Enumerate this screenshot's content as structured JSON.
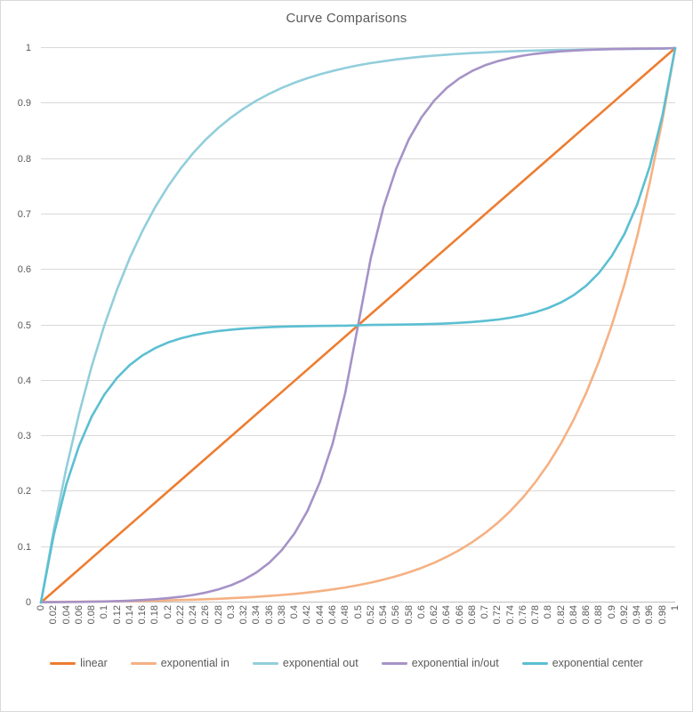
{
  "chart_data": {
    "type": "line",
    "title": "Curve Comparisons",
    "xlabel": "",
    "ylabel": "",
    "xlim": [
      0,
      1
    ],
    "ylim": [
      0,
      1
    ],
    "x_tick_step": 0.02,
    "y_tick_step": 0.1,
    "grid": "horizontal-major",
    "legend_position": "bottom",
    "colors": {
      "background": "#FFFFFF",
      "frame_border": "#D9D9D9",
      "gridline": "#D9D9D9",
      "axis_line": "#BFBFBF",
      "tick_text": "#595959",
      "title_text": "#595959",
      "legend_text": "#595959"
    },
    "x": [
      0,
      0.02,
      0.04,
      0.06,
      0.08,
      0.1,
      0.12,
      0.14,
      0.16,
      0.18,
      0.2,
      0.22,
      0.24,
      0.26,
      0.28,
      0.3,
      0.32,
      0.34,
      0.36,
      0.38,
      0.4,
      0.42,
      0.44,
      0.46,
      0.48,
      0.5,
      0.52,
      0.54,
      0.56,
      0.58,
      0.6,
      0.62,
      0.64,
      0.66,
      0.68,
      0.7,
      0.72,
      0.74,
      0.76,
      0.78,
      0.8,
      0.82,
      0.84,
      0.86,
      0.88,
      0.9,
      0.92,
      0.94,
      0.96,
      0.98,
      1
    ],
    "x_labels": [
      "0",
      "0.02",
      "0.04",
      "0.06",
      "0.08",
      "0.1",
      "0.12",
      "0.14",
      "0.16",
      "0.18",
      "0.2",
      "0.22",
      "0.24",
      "0.26",
      "0.28",
      "0.3",
      "0.32",
      "0.34",
      "0.36",
      "0.38",
      "0.4",
      "0.42",
      "0.44",
      "0.46",
      "0.48",
      "0.5",
      "0.52",
      "0.54",
      "0.56",
      "0.58",
      "0.6",
      "0.62",
      "0.64",
      "0.66",
      "0.68",
      "0.7",
      "0.72",
      "0.74",
      "0.76",
      "0.78",
      "0.8",
      "0.82",
      "0.84",
      "0.86",
      "0.88",
      "0.9",
      "0.92",
      "0.94",
      "0.96",
      "0.98",
      "1"
    ],
    "y_labels": [
      "1",
      "0.9",
      "0.8",
      "0.7",
      "0.6",
      "0.5",
      "0.4",
      "0.3",
      "0.2",
      "0.1",
      "0"
    ],
    "series": [
      {
        "name": "linear",
        "color": "#ED7D31",
        "values": [
          0,
          0.02,
          0.04,
          0.06,
          0.08,
          0.1,
          0.12,
          0.14,
          0.16,
          0.18,
          0.2,
          0.22,
          0.24,
          0.26,
          0.28,
          0.3,
          0.32,
          0.34,
          0.36,
          0.38,
          0.4,
          0.42,
          0.44,
          0.46,
          0.48,
          0.5,
          0.52,
          0.54,
          0.56,
          0.58,
          0.6,
          0.62,
          0.64,
          0.66,
          0.68,
          0.7,
          0.72,
          0.74,
          0.76,
          0.78,
          0.8,
          0.82,
          0.84,
          0.86,
          0.88,
          0.9,
          0.92,
          0.94,
          0.96,
          0.98,
          1
        ]
      },
      {
        "name": "exponential in",
        "color": "#F5B183",
        "values": [
          0.001,
          0.0011,
          0.0013,
          0.0015,
          0.0017,
          0.002,
          0.0022,
          0.0026,
          0.003,
          0.0034,
          0.0039,
          0.0045,
          0.0052,
          0.0059,
          0.0068,
          0.0078,
          0.009,
          0.0103,
          0.0118,
          0.0136,
          0.0156,
          0.018,
          0.0206,
          0.0237,
          0.0272,
          0.0313,
          0.0359,
          0.0412,
          0.0474,
          0.0544,
          0.0625,
          0.0718,
          0.0825,
          0.0947,
          0.1088,
          0.125,
          0.1436,
          0.1649,
          0.1895,
          0.2176,
          0.25,
          0.2872,
          0.3299,
          0.3789,
          0.4353,
          0.5,
          0.5743,
          0.6598,
          0.7579,
          0.8706,
          1
        ]
      },
      {
        "name": "exponential out",
        "color": "#92CEDB",
        "values": [
          0,
          0.1294,
          0.2421,
          0.3402,
          0.4257,
          0.5,
          0.5647,
          0.6211,
          0.6701,
          0.7128,
          0.75,
          0.7824,
          0.8106,
          0.8351,
          0.8564,
          0.875,
          0.8912,
          0.9053,
          0.9175,
          0.9282,
          0.9375,
          0.9456,
          0.9526,
          0.9588,
          0.9641,
          0.9688,
          0.9728,
          0.9763,
          0.9794,
          0.982,
          0.9844,
          0.9864,
          0.9882,
          0.9897,
          0.991,
          0.9922,
          0.9932,
          0.9941,
          0.9948,
          0.9955,
          0.9961,
          0.9966,
          0.997,
          0.9974,
          0.9978,
          0.998,
          0.9983,
          0.9985,
          0.9987,
          0.9989,
          1
        ]
      },
      {
        "name": "exponential in/out",
        "color": "#A692C7",
        "values": [
          0.0005,
          0.0007,
          0.0009,
          0.0011,
          0.0015,
          0.002,
          0.0026,
          0.0034,
          0.0045,
          0.0059,
          0.0078,
          0.0103,
          0.0136,
          0.018,
          0.0237,
          0.0313,
          0.0412,
          0.0544,
          0.0718,
          0.0947,
          0.125,
          0.1649,
          0.2176,
          0.2872,
          0.3789,
          0.5,
          0.6211,
          0.7128,
          0.7824,
          0.8351,
          0.875,
          0.9053,
          0.9282,
          0.9456,
          0.9588,
          0.9688,
          0.9763,
          0.982,
          0.9864,
          0.9897,
          0.9922,
          0.9941,
          0.9955,
          0.9966,
          0.9974,
          0.998,
          0.9985,
          0.9989,
          0.9991,
          0.9993,
          1
        ]
      },
      {
        "name": "exponential center",
        "color": "#5BBFD2",
        "values": [
          0,
          0.1211,
          0.2129,
          0.2824,
          0.3351,
          0.375,
          0.4053,
          0.4282,
          0.4456,
          0.4588,
          0.4688,
          0.4763,
          0.482,
          0.4864,
          0.4897,
          0.4922,
          0.4941,
          0.4955,
          0.4966,
          0.4974,
          0.498,
          0.4985,
          0.4989,
          0.4991,
          0.4993,
          0.5,
          0.5007,
          0.5009,
          0.5011,
          0.5015,
          0.502,
          0.5026,
          0.5034,
          0.5045,
          0.5059,
          0.5078,
          0.5103,
          0.5136,
          0.518,
          0.5237,
          0.5313,
          0.5412,
          0.5544,
          0.5717,
          0.5947,
          0.625,
          0.6649,
          0.7176,
          0.7871,
          0.8789,
          1
        ]
      }
    ]
  }
}
